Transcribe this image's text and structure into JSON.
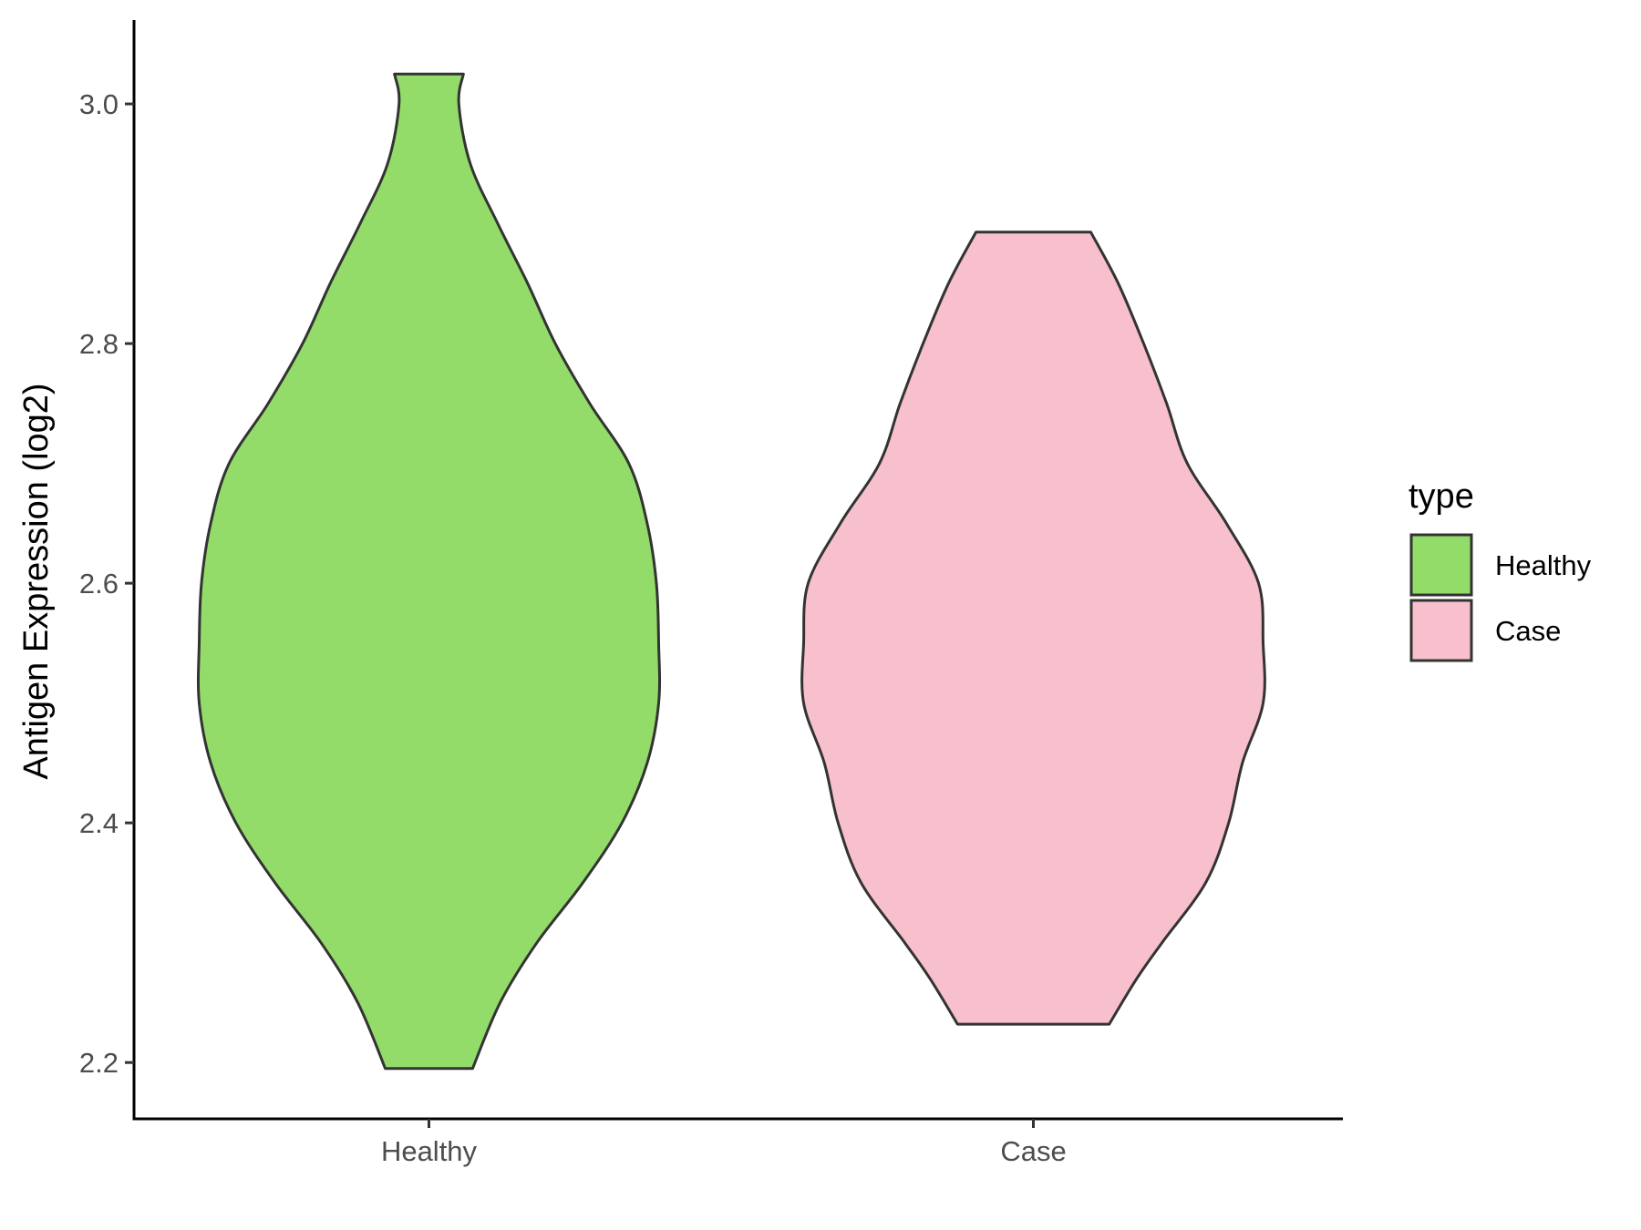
{
  "chart_data": {
    "type": "violin",
    "title": "",
    "xlabel": "",
    "ylabel": "Antigen Expression (log2)",
    "ylim": [
      2.153,
      3.07
    ],
    "yticks": [
      "2.2",
      "2.4",
      "2.6",
      "2.8",
      "3.0"
    ],
    "categories": [
      "Healthy",
      "Case"
    ],
    "grid": false,
    "legend": {
      "title": "type",
      "position": "right",
      "entries": [
        {
          "label": "Healthy",
          "color": "#93dc6a"
        },
        {
          "label": "Case",
          "color": "#f7c0cc"
        }
      ]
    },
    "series": [
      {
        "name": "Healthy",
        "color": "#93dc6a",
        "min": 2.195,
        "max": 3.025,
        "density": [
          [
            2.195,
            0.19
          ],
          [
            2.25,
            0.31
          ],
          [
            2.3,
            0.47
          ],
          [
            2.35,
            0.67
          ],
          [
            2.4,
            0.84
          ],
          [
            2.45,
            0.95
          ],
          [
            2.5,
            1.0
          ],
          [
            2.55,
            1.0
          ],
          [
            2.6,
            0.99
          ],
          [
            2.65,
            0.95
          ],
          [
            2.7,
            0.87
          ],
          [
            2.75,
            0.7
          ],
          [
            2.8,
            0.55
          ],
          [
            2.85,
            0.43
          ],
          [
            2.9,
            0.3
          ],
          [
            2.95,
            0.18
          ],
          [
            3.0,
            0.13
          ],
          [
            3.025,
            0.15
          ]
        ]
      },
      {
        "name": "Case",
        "color": "#f7c0cc",
        "min": 2.232,
        "max": 2.893,
        "density": [
          [
            2.232,
            0.33
          ],
          [
            2.27,
            0.45
          ],
          [
            2.3,
            0.56
          ],
          [
            2.35,
            0.75
          ],
          [
            2.4,
            0.85
          ],
          [
            2.45,
            0.91
          ],
          [
            2.5,
            1.0
          ],
          [
            2.55,
            1.0
          ],
          [
            2.6,
            0.98
          ],
          [
            2.65,
            0.84
          ],
          [
            2.7,
            0.67
          ],
          [
            2.75,
            0.58
          ],
          [
            2.8,
            0.48
          ],
          [
            2.85,
            0.37
          ],
          [
            2.893,
            0.25
          ]
        ]
      }
    ]
  }
}
